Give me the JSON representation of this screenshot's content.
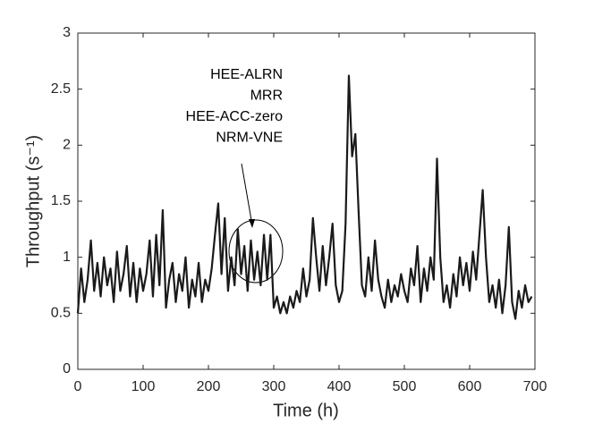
{
  "chart_data": {
    "type": "line",
    "xlabel": "Time (h)",
    "ylabel": "Throughput (s⁻¹)",
    "annotations": [
      "HEE-ALRN",
      "MRR",
      "HEE-ACC-zero",
      "NRM-VNE"
    ],
    "color": "#1a1a1a",
    "x": [
      0,
      5,
      10,
      15,
      20,
      25,
      30,
      35,
      40,
      45,
      50,
      55,
      60,
      65,
      70,
      75,
      80,
      85,
      90,
      95,
      100,
      105,
      110,
      115,
      120,
      125,
      130,
      135,
      140,
      145,
      150,
      155,
      160,
      165,
      170,
      175,
      180,
      185,
      190,
      195,
      200,
      205,
      210,
      215,
      220,
      225,
      230,
      235,
      240,
      245,
      250,
      255,
      260,
      265,
      270,
      275,
      280,
      285,
      290,
      295,
      300,
      305,
      310,
      315,
      320,
      325,
      330,
      335,
      340,
      345,
      350,
      355,
      360,
      365,
      370,
      375,
      380,
      385,
      390,
      395,
      400,
      405,
      410,
      415,
      420,
      425,
      430,
      435,
      440,
      445,
      450,
      455,
      460,
      465,
      470,
      475,
      480,
      485,
      490,
      495,
      500,
      505,
      510,
      515,
      520,
      525,
      530,
      535,
      540,
      545,
      550,
      555,
      560,
      565,
      570,
      575,
      580,
      585,
      590,
      595,
      600,
      605,
      610,
      615,
      620,
      625,
      630,
      635,
      640,
      645,
      650,
      655,
      660,
      665,
      670,
      675,
      680,
      685,
      690,
      695
    ],
    "values": [
      0.5,
      0.9,
      0.6,
      0.8,
      1.15,
      0.7,
      0.95,
      0.65,
      1.0,
      0.75,
      0.9,
      0.6,
      1.05,
      0.7,
      0.85,
      1.1,
      0.65,
      0.95,
      0.6,
      0.9,
      0.7,
      0.85,
      1.15,
      0.65,
      1.2,
      0.75,
      1.42,
      0.55,
      0.8,
      0.95,
      0.6,
      0.85,
      0.7,
      1.0,
      0.55,
      0.8,
      0.65,
      0.95,
      0.6,
      0.8,
      0.7,
      0.9,
      1.2,
      1.48,
      0.85,
      1.35,
      0.7,
      1.0,
      0.75,
      1.25,
      0.85,
      1.1,
      0.7,
      1.15,
      0.8,
      1.05,
      0.75,
      1.2,
      0.8,
      1.2,
      0.55,
      0.65,
      0.5,
      0.6,
      0.5,
      0.65,
      0.55,
      0.7,
      0.6,
      0.9,
      0.65,
      0.8,
      1.35,
      1.0,
      0.7,
      1.1,
      0.75,
      1.0,
      1.3,
      0.75,
      0.6,
      0.7,
      1.3,
      2.62,
      1.9,
      2.1,
      1.4,
      0.75,
      0.65,
      1.0,
      0.7,
      1.15,
      0.8,
      0.65,
      0.55,
      0.8,
      0.6,
      0.75,
      0.65,
      0.85,
      0.7,
      0.6,
      0.9,
      0.75,
      1.1,
      0.6,
      0.9,
      0.7,
      1.0,
      0.8,
      1.88,
      1.0,
      0.6,
      0.75,
      0.55,
      0.85,
      0.65,
      1.0,
      0.75,
      0.95,
      0.7,
      1.05,
      0.8,
      1.2,
      1.6,
      1.0,
      0.6,
      0.75,
      0.55,
      0.8,
      0.5,
      0.75,
      1.27,
      0.6,
      0.45,
      0.7,
      0.55,
      0.75,
      0.6,
      0.65
    ],
    "xlim": [
      0,
      700
    ],
    "xticks": [
      0,
      100,
      200,
      300,
      400,
      500,
      600,
      700
    ],
    "ylim": [
      0,
      3
    ],
    "yticks": [
      0,
      0.5,
      1,
      1.5,
      2,
      2.5,
      3
    ]
  }
}
